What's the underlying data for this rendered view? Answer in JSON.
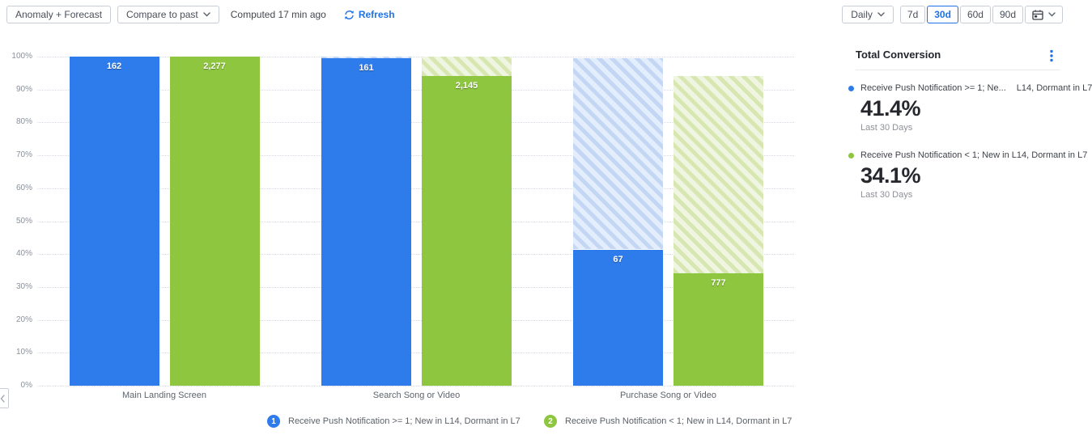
{
  "toolbar": {
    "anomaly_forecast_label": "Anomaly + Forecast",
    "compare_to_past_label": "Compare to past",
    "computed_label": "Computed 17 min ago",
    "refresh_label": "Refresh",
    "daily_label": "Daily",
    "range_buttons": [
      "7d",
      "30d",
      "60d",
      "90d"
    ],
    "active_range": "30d"
  },
  "colors": {
    "accent_blue": "#1f72e8",
    "series_blue": "#2e7ceb",
    "series_green": "#8ec640",
    "hatch_blue_base": "#e4edfb",
    "hatch_blue_stripe": "#c3d6f4",
    "hatch_green_base": "#f0f5e2",
    "hatch_green_stripe": "#d8e7b2"
  },
  "chart_data": {
    "type": "bar",
    "subtype": "funnel-grouped-stacked",
    "title": "",
    "categories": [
      "Main Landing Screen",
      "Search Song or Video",
      "Purchase Song or Video"
    ],
    "series": [
      {
        "name": "Receive Push Notification >= 1; New in L14, Dormant in L7",
        "color": "#2e7ceb",
        "hatch_base": "#e4edfb",
        "hatch_stripe": "#c3d6f4",
        "values": [
          "162",
          "161",
          "67"
        ],
        "pct": [
          100,
          99.4,
          41.4
        ]
      },
      {
        "name": "Receive Push Notification < 1; New in L14, Dormant in L7",
        "color": "#8ec640",
        "hatch_base": "#f0f5e2",
        "hatch_stripe": "#d8e7b2",
        "values": [
          "2,277",
          "2,145",
          "777"
        ],
        "pct": [
          100,
          94.2,
          34.1
        ]
      }
    ],
    "ylabel_ticks": [
      "100%",
      "90%",
      "80%",
      "70%",
      "60%",
      "50%",
      "40%",
      "30%",
      "20%",
      "10%",
      "0%"
    ],
    "ylim": [
      0,
      100
    ],
    "grid": "horizontal-dotted",
    "legend_position": "bottom",
    "note": "hatched segment above each solid bar spans from current step conversion up to previous step conversion"
  },
  "legend": {
    "items": [
      {
        "number": "1",
        "label": "Receive Push Notification >= 1; New in L14, Dormant in L7",
        "color": "#2e7ceb"
      },
      {
        "number": "2",
        "label": "Receive Push Notification < 1; New in L14, Dormant in L7",
        "color": "#8ec640"
      }
    ]
  },
  "summary_panel": {
    "title": "Total Conversion",
    "entries": [
      {
        "label_truncated": "Receive Push Notification >= 1; Ne...",
        "label_suffix": "L14, Dormant in L7",
        "value": "41.4%",
        "caption": "Last 30 Days",
        "color": "#2e7ceb"
      },
      {
        "label_truncated": "Receive Push Notification < 1; New in L14, Dormant in L7",
        "label_suffix": "",
        "value": "34.1%",
        "caption": "Last 30 Days",
        "color": "#8ec640"
      }
    ]
  }
}
